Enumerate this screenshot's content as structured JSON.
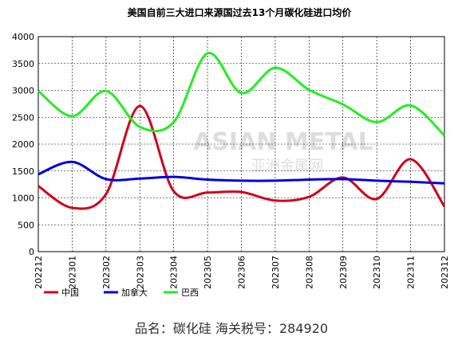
{
  "chart_data": {
    "type": "line",
    "title": "美国自前三大进口来源国过去13个月碳化硅进口均价",
    "categories": [
      "202212",
      "202301",
      "202302",
      "202303",
      "202304",
      "202305",
      "202306",
      "202307",
      "202308",
      "202309",
      "202310",
      "202311",
      "202312"
    ],
    "series": [
      {
        "name": "中国",
        "color": "#d0021b",
        "values": [
          1220,
          815,
          1070,
          2710,
          1125,
          1100,
          1110,
          950,
          1020,
          1380,
          980,
          1720,
          840
        ]
      },
      {
        "name": "加拿大",
        "color": "#0000dd",
        "values": [
          1440,
          1670,
          1350,
          1360,
          1390,
          1340,
          1320,
          1320,
          1340,
          1350,
          1320,
          1300,
          1270
        ]
      },
      {
        "name": "巴西",
        "color": "#22ee22",
        "values": [
          2990,
          2520,
          2990,
          2320,
          2410,
          3690,
          2950,
          3420,
          3010,
          2740,
          2410,
          2720,
          2160
        ]
      }
    ],
    "ylim": [
      0,
      4000
    ],
    "yticks": [
      0,
      500,
      1000,
      1500,
      2000,
      2500,
      3000,
      3500,
      4000
    ],
    "grid": true,
    "watermark": "ASIAN METAL",
    "watermark_cn": "亚洲金属网",
    "footer": "品名：碳化硅   海关税号：284920"
  }
}
